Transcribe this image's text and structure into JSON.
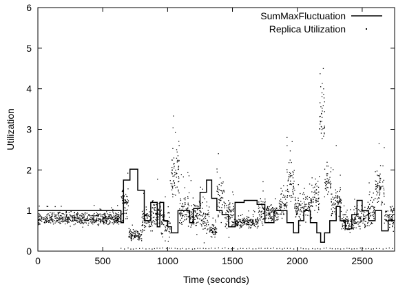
{
  "chart_data": {
    "type": "line",
    "title": "",
    "xlabel": "Time (seconds)",
    "ylabel": "Utilization",
    "xlim": [
      0,
      2750
    ],
    "ylim": [
      0,
      6
    ],
    "xticks": [
      0,
      500,
      1000,
      1500,
      2000,
      2500
    ],
    "xtick_labels": [
      "0",
      "500",
      "1000",
      "1500",
      "2000",
      "2500"
    ],
    "yticks": [
      0,
      1,
      2,
      3,
      4,
      5,
      6
    ],
    "ytick_labels": [
      "0",
      "1",
      "2",
      "3",
      "4",
      "5",
      "6"
    ],
    "grid": false,
    "legend_position": "top-right",
    "series": [
      {
        "name": "SumMaxFluctuation",
        "style": "step-line",
        "color": "#000000",
        "points": [
          [
            0,
            1.0
          ],
          [
            640,
            1.0
          ],
          [
            640,
            0.7
          ],
          [
            660,
            0.7
          ],
          [
            660,
            1.75
          ],
          [
            710,
            1.75
          ],
          [
            710,
            2.02
          ],
          [
            770,
            2.02
          ],
          [
            770,
            1.5
          ],
          [
            820,
            1.5
          ],
          [
            820,
            0.75
          ],
          [
            870,
            0.75
          ],
          [
            870,
            1.2
          ],
          [
            920,
            1.2
          ],
          [
            920,
            0.6
          ],
          [
            940,
            0.6
          ],
          [
            940,
            1.2
          ],
          [
            970,
            1.2
          ],
          [
            970,
            0.75
          ],
          [
            1000,
            0.75
          ],
          [
            1000,
            0.6
          ],
          [
            1030,
            0.6
          ],
          [
            1030,
            0.45
          ],
          [
            1080,
            0.45
          ],
          [
            1080,
            1.0
          ],
          [
            1170,
            1.0
          ],
          [
            1170,
            0.7
          ],
          [
            1200,
            0.7
          ],
          [
            1200,
            1.05
          ],
          [
            1250,
            1.05
          ],
          [
            1250,
            1.45
          ],
          [
            1300,
            1.45
          ],
          [
            1300,
            1.75
          ],
          [
            1340,
            1.75
          ],
          [
            1340,
            1.3
          ],
          [
            1380,
            1.3
          ],
          [
            1380,
            1.0
          ],
          [
            1420,
            1.0
          ],
          [
            1420,
            0.9
          ],
          [
            1470,
            0.9
          ],
          [
            1470,
            0.6
          ],
          [
            1520,
            0.6
          ],
          [
            1520,
            1.2
          ],
          [
            1590,
            1.2
          ],
          [
            1590,
            1.25
          ],
          [
            1690,
            1.25
          ],
          [
            1690,
            1.15
          ],
          [
            1750,
            1.15
          ],
          [
            1750,
            0.7
          ],
          [
            1820,
            0.7
          ],
          [
            1820,
            1.0
          ],
          [
            1920,
            1.0
          ],
          [
            1920,
            0.7
          ],
          [
            1970,
            0.7
          ],
          [
            1970,
            0.45
          ],
          [
            2010,
            0.45
          ],
          [
            2010,
            0.75
          ],
          [
            2050,
            0.75
          ],
          [
            2050,
            1.0
          ],
          [
            2100,
            1.0
          ],
          [
            2100,
            0.7
          ],
          [
            2150,
            0.7
          ],
          [
            2150,
            0.45
          ],
          [
            2180,
            0.45
          ],
          [
            2180,
            0.22
          ],
          [
            2210,
            0.22
          ],
          [
            2210,
            0.45
          ],
          [
            2250,
            0.45
          ],
          [
            2250,
            0.75
          ],
          [
            2300,
            0.75
          ],
          [
            2300,
            1.1
          ],
          [
            2330,
            1.1
          ],
          [
            2330,
            0.75
          ],
          [
            2370,
            0.75
          ],
          [
            2370,
            0.55
          ],
          [
            2420,
            0.55
          ],
          [
            2420,
            0.9
          ],
          [
            2460,
            0.9
          ],
          [
            2460,
            1.25
          ],
          [
            2500,
            1.25
          ],
          [
            2500,
            1.0
          ],
          [
            2550,
            1.0
          ],
          [
            2550,
            0.75
          ],
          [
            2600,
            0.75
          ],
          [
            2600,
            1.0
          ],
          [
            2650,
            1.0
          ],
          [
            2650,
            0.5
          ],
          [
            2700,
            0.5
          ],
          [
            2700,
            0.75
          ],
          [
            2750,
            0.75
          ]
        ]
      },
      {
        "name": "Replica Utilization",
        "style": "scatter-dots",
        "color": "#000000",
        "segments": [
          [
            0,
            640,
            0.8,
            0.12
          ],
          [
            640,
            700,
            1.15,
            0.35
          ],
          [
            700,
            800,
            0.4,
            0.1
          ],
          [
            800,
            880,
            0.75,
            0.25
          ],
          [
            880,
            950,
            0.95,
            0.3
          ],
          [
            950,
            1020,
            0.7,
            0.3
          ],
          [
            1020,
            1090,
            1.9,
            0.45
          ],
          [
            1090,
            1170,
            1.0,
            0.35
          ],
          [
            1170,
            1260,
            0.95,
            0.3
          ],
          [
            1260,
            1320,
            0.8,
            0.35
          ],
          [
            1320,
            1380,
            0.5,
            0.15
          ],
          [
            1380,
            1440,
            1.3,
            0.4
          ],
          [
            1440,
            1520,
            0.9,
            0.3
          ],
          [
            1520,
            1620,
            0.7,
            0.1
          ],
          [
            1620,
            1700,
            0.7,
            0.12
          ],
          [
            1700,
            1760,
            1.0,
            0.3
          ],
          [
            1760,
            1860,
            0.95,
            0.15
          ],
          [
            1860,
            1920,
            1.1,
            0.25
          ],
          [
            1920,
            1980,
            1.7,
            0.35
          ],
          [
            1980,
            2040,
            1.05,
            0.25
          ],
          [
            2040,
            2120,
            1.15,
            0.3
          ],
          [
            2120,
            2170,
            1.35,
            0.35
          ],
          [
            2170,
            2210,
            3.4,
            0.55
          ],
          [
            2210,
            2260,
            1.7,
            0.3
          ],
          [
            2260,
            2340,
            1.2,
            0.3
          ],
          [
            2340,
            2440,
            0.7,
            0.15
          ],
          [
            2440,
            2540,
            0.8,
            0.2
          ],
          [
            2540,
            2600,
            1.0,
            0.25
          ],
          [
            2600,
            2670,
            1.6,
            0.4
          ],
          [
            2670,
            2750,
            0.85,
            0.25
          ]
        ],
        "outliers": [
          [
            1045,
            3.33
          ],
          [
            2200,
            4.5
          ],
          [
            2180,
            4.05
          ],
          [
            2190,
            3.9
          ],
          [
            2630,
            2.65
          ],
          [
            2660,
            2.1
          ],
          [
            1960,
            2.7
          ],
          [
            1070,
            2.5
          ],
          [
            1080,
            2.35
          ],
          [
            2300,
            2.6
          ],
          [
            1920,
            2.8
          ]
        ],
        "baseline_y": 0.05,
        "baseline_range": [
          640,
          2750
        ]
      }
    ]
  }
}
